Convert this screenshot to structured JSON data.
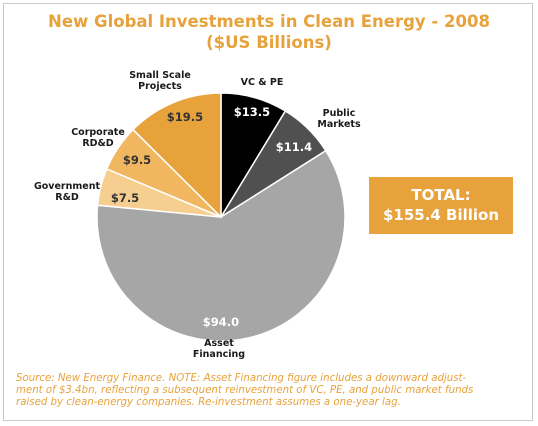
{
  "title_lines": [
    "New Global Investments in Clean Energy - 2008",
    "($US Billions)"
  ],
  "total": {
    "line1": "TOTAL:",
    "line2": "$155.4 Billion",
    "color": "#e8a23b"
  },
  "source_lines": [
    "Source: New Energy Finance. NOTE: Asset Financing figure includes a downward adjust-",
    "ment of $3.4bn, reflecting a subsequent reinvestment of VC, PE, and public market funds",
    "raised by clean-energy companies.  Re-investment assumes a one-year lag."
  ],
  "colors": {
    "accent": "#e8a23b",
    "border": "#c9c9c9"
  },
  "chart_data": {
    "type": "pie",
    "title": "New Global Investments in Clean Energy - 2008 ($US Billions)",
    "unit": "$US Billions",
    "total": 155.4,
    "slices": [
      {
        "name": "VC & PE",
        "value": 13.5,
        "label": "$13.5",
        "color": "#000000"
      },
      {
        "name": "Public Markets",
        "value": 11.4,
        "label": "$11.4",
        "color": "#505050"
      },
      {
        "name": "Asset Financing",
        "value": 94.0,
        "label": "$94.0",
        "color": "#a6a6a6"
      },
      {
        "name": "Government R&D",
        "value": 7.5,
        "label": "$7.5",
        "color": "#f6cf90"
      },
      {
        "name": "Corporate RD&D",
        "value": 9.5,
        "label": "$9.5",
        "color": "#f0b660"
      },
      {
        "name": "Small Scale Projects",
        "value": 19.5,
        "label": "$19.5",
        "color": "#e8a23b"
      }
    ]
  }
}
